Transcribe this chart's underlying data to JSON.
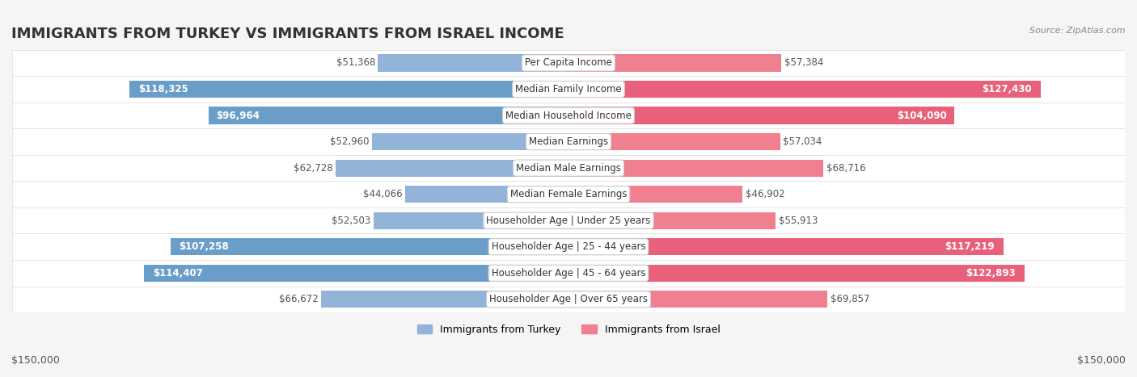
{
  "title": "IMMIGRANTS FROM TURKEY VS IMMIGRANTS FROM ISRAEL INCOME",
  "source": "Source: ZipAtlas.com",
  "categories": [
    "Per Capita Income",
    "Median Family Income",
    "Median Household Income",
    "Median Earnings",
    "Median Male Earnings",
    "Median Female Earnings",
    "Householder Age | Under 25 years",
    "Householder Age | 25 - 44 years",
    "Householder Age | 45 - 64 years",
    "Householder Age | Over 65 years"
  ],
  "turkey_values": [
    51368,
    118325,
    96964,
    52960,
    62728,
    44066,
    52503,
    107258,
    114407,
    66672
  ],
  "israel_values": [
    57384,
    127430,
    104090,
    57034,
    68716,
    46902,
    55913,
    117219,
    122893,
    69857
  ],
  "turkey_labels": [
    "$51,368",
    "$118,325",
    "$96,964",
    "$52,960",
    "$62,728",
    "$44,066",
    "$52,503",
    "$107,258",
    "$114,407",
    "$66,672"
  ],
  "israel_labels": [
    "$57,384",
    "$127,430",
    "$104,090",
    "$57,034",
    "$68,716",
    "$46,902",
    "$55,913",
    "$117,219",
    "$122,893",
    "$69,857"
  ],
  "turkey_color": "#92b4d8",
  "israel_color": "#f08090",
  "turkey_color_strong": "#6a9ec8",
  "israel_color_strong": "#e8607a",
  "max_value": 150000,
  "x_label_left": "$150,000",
  "x_label_right": "$150,000",
  "legend_turkey": "Immigrants from Turkey",
  "legend_israel": "Immigrants from Israel",
  "background_color": "#f5f5f5",
  "row_bg_color": "#ffffff",
  "title_fontsize": 13,
  "label_fontsize": 8.5,
  "category_fontsize": 8.5
}
